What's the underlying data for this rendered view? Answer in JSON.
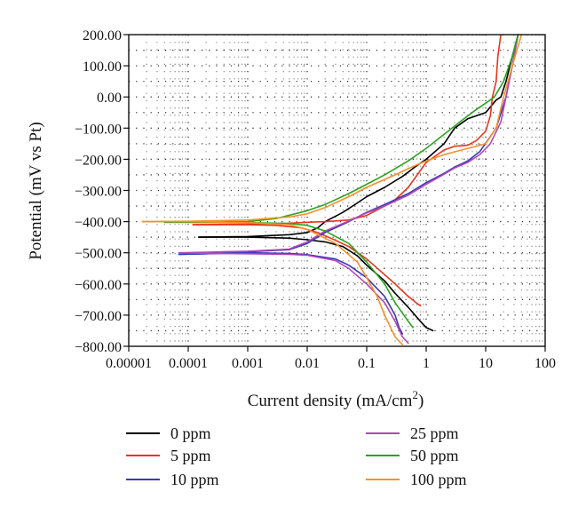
{
  "chart_data": {
    "type": "line",
    "xlabel": "Current density (mA/cm",
    "xlabel_sup": "2",
    "xlabel_close": ")",
    "ylabel": "Potential (mV vs Pt)",
    "x_scale": "log",
    "xlim": [
      1e-05,
      100
    ],
    "ylim": [
      -800,
      200
    ],
    "grid": true,
    "legend_position": "bottom",
    "x_tick_values": [
      1e-05,
      0.0001,
      0.001,
      0.01,
      0.1,
      1,
      10,
      100
    ],
    "x_tick_labels": [
      "0.00001",
      "0.0001",
      "0.001",
      "0.01",
      "0.1",
      "1",
      "10",
      "100"
    ],
    "y_tick_values": [
      200,
      100,
      0,
      -100,
      -200,
      -300,
      -400,
      -500,
      -600,
      -700,
      -800
    ],
    "y_tick_labels": [
      "200.00",
      "100.00",
      "0.00",
      "−100.00",
      "−200.00",
      "−300.00",
      "−400.00",
      "−500.00",
      "−600.00",
      "−700.00",
      "−800.00"
    ],
    "series": [
      {
        "name": "0 ppm",
        "color": "#000000",
        "cathodic": [
          [
            0.00015,
            -450
          ],
          [
            0.001,
            -450
          ],
          [
            0.005,
            -453
          ],
          [
            0.01,
            -458
          ],
          [
            0.02,
            -465
          ],
          [
            0.04,
            -480
          ],
          [
            0.07,
            -510
          ],
          [
            0.1,
            -540
          ],
          [
            0.2,
            -590
          ],
          [
            0.3,
            -630
          ],
          [
            0.5,
            -675
          ],
          [
            0.8,
            -720
          ],
          [
            1.0,
            -740
          ],
          [
            1.3,
            -750
          ]
        ],
        "anodic": [
          [
            0.00015,
            -450
          ],
          [
            0.001,
            -448
          ],
          [
            0.005,
            -442
          ],
          [
            0.01,
            -435
          ],
          [
            0.015,
            -420
          ],
          [
            0.02,
            -400
          ],
          [
            0.04,
            -370
          ],
          [
            0.07,
            -340
          ],
          [
            0.1,
            -320
          ],
          [
            0.2,
            -290
          ],
          [
            0.4,
            -255
          ],
          [
            0.7,
            -220
          ],
          [
            1,
            -200
          ],
          [
            2,
            -150
          ],
          [
            3,
            -100
          ],
          [
            5,
            -70
          ],
          [
            10,
            -50
          ],
          [
            15,
            -10
          ],
          [
            18,
            0
          ],
          [
            22,
            50
          ],
          [
            28,
            130
          ],
          [
            35,
            200
          ]
        ]
      },
      {
        "name": "5 ppm",
        "color": "#e8351e",
        "cathodic": [
          [
            0.00012,
            -410
          ],
          [
            0.001,
            -410
          ],
          [
            0.003,
            -412
          ],
          [
            0.008,
            -420
          ],
          [
            0.015,
            -435
          ],
          [
            0.03,
            -460
          ],
          [
            0.05,
            -480
          ],
          [
            0.1,
            -520
          ],
          [
            0.2,
            -570
          ],
          [
            0.3,
            -600
          ],
          [
            0.5,
            -640
          ],
          [
            0.7,
            -662
          ],
          [
            0.8,
            -670
          ]
        ],
        "anodic": [
          [
            0.00012,
            -410
          ],
          [
            0.001,
            -408
          ],
          [
            0.005,
            -405
          ],
          [
            0.01,
            -402
          ],
          [
            0.02,
            -400
          ],
          [
            0.05,
            -395
          ],
          [
            0.1,
            -380
          ],
          [
            0.2,
            -350
          ],
          [
            0.3,
            -330
          ],
          [
            0.5,
            -290
          ],
          [
            1,
            -210
          ],
          [
            2,
            -170
          ],
          [
            3,
            -158
          ],
          [
            5,
            -155
          ],
          [
            7,
            -140
          ],
          [
            10,
            -110
          ],
          [
            12,
            -60
          ],
          [
            13,
            0
          ],
          [
            15,
            50
          ],
          [
            16,
            130
          ],
          [
            18,
            200
          ]
        ]
      },
      {
        "name": "10 ppm",
        "color": "#3a3ab5",
        "cathodic": [
          [
            7e-05,
            -505
          ],
          [
            0.0002,
            -503
          ],
          [
            0.001,
            -500
          ],
          [
            0.005,
            -502
          ],
          [
            0.01,
            -506
          ],
          [
            0.03,
            -520
          ],
          [
            0.05,
            -540
          ],
          [
            0.1,
            -580
          ],
          [
            0.2,
            -640
          ],
          [
            0.3,
            -700
          ],
          [
            0.35,
            -740
          ],
          [
            0.4,
            -760
          ]
        ],
        "anodic": [
          [
            7e-05,
            -505
          ],
          [
            0.0002,
            -503
          ],
          [
            0.001,
            -497
          ],
          [
            0.005,
            -490
          ],
          [
            0.01,
            -470
          ],
          [
            0.02,
            -435
          ],
          [
            0.05,
            -400
          ],
          [
            0.1,
            -370
          ],
          [
            0.2,
            -345
          ],
          [
            0.5,
            -310
          ],
          [
            1,
            -275
          ],
          [
            2,
            -245
          ],
          [
            3,
            -225
          ],
          [
            5,
            -205
          ],
          [
            8,
            -175
          ],
          [
            15,
            -100
          ],
          [
            22,
            0
          ],
          [
            28,
            100
          ],
          [
            35,
            200
          ]
        ]
      },
      {
        "name": "25 ppm",
        "color": "#b147b8",
        "cathodic": [
          [
            7e-05,
            -500
          ],
          [
            0.0002,
            -502
          ],
          [
            0.001,
            -503
          ],
          [
            0.005,
            -505
          ],
          [
            0.01,
            -508
          ],
          [
            0.03,
            -525
          ],
          [
            0.05,
            -550
          ],
          [
            0.1,
            -600
          ],
          [
            0.2,
            -660
          ],
          [
            0.3,
            -720
          ],
          [
            0.4,
            -770
          ],
          [
            0.5,
            -790
          ]
        ],
        "anodic": [
          [
            7e-05,
            -500
          ],
          [
            0.0002,
            -498
          ],
          [
            0.001,
            -495
          ],
          [
            0.005,
            -488
          ],
          [
            0.01,
            -465
          ],
          [
            0.02,
            -430
          ],
          [
            0.05,
            -398
          ],
          [
            0.1,
            -372
          ],
          [
            0.2,
            -350
          ],
          [
            0.5,
            -315
          ],
          [
            1,
            -280
          ],
          [
            2,
            -248
          ],
          [
            3,
            -228
          ],
          [
            5,
            -210
          ],
          [
            8,
            -185
          ],
          [
            12,
            -150
          ],
          [
            18,
            -80
          ],
          [
            22,
            0
          ],
          [
            28,
            100
          ],
          [
            35,
            200
          ]
        ]
      },
      {
        "name": "50 ppm",
        "color": "#2aa31f",
        "cathodic": [
          [
            4e-05,
            -402
          ],
          [
            0.001,
            -403
          ],
          [
            0.005,
            -406
          ],
          [
            0.01,
            -412
          ],
          [
            0.02,
            -430
          ],
          [
            0.05,
            -470
          ],
          [
            0.1,
            -530
          ],
          [
            0.2,
            -600
          ],
          [
            0.3,
            -660
          ],
          [
            0.5,
            -720
          ],
          [
            0.6,
            -740
          ]
        ],
        "anodic": [
          [
            4e-05,
            -402
          ],
          [
            0.001,
            -400
          ],
          [
            0.003,
            -390
          ],
          [
            0.01,
            -365
          ],
          [
            0.02,
            -345
          ],
          [
            0.05,
            -310
          ],
          [
            0.1,
            -280
          ],
          [
            0.2,
            -250
          ],
          [
            0.5,
            -205
          ],
          [
            1,
            -165
          ],
          [
            2,
            -120
          ],
          [
            4,
            -75
          ],
          [
            7,
            -40
          ],
          [
            10,
            -20
          ],
          [
            14,
            0
          ],
          [
            20,
            50
          ],
          [
            28,
            130
          ],
          [
            35,
            200
          ]
        ]
      },
      {
        "name": "100 ppm",
        "color": "#f5912a",
        "cathodic": [
          [
            1.7e-05,
            -400
          ],
          [
            0.0001,
            -400
          ],
          [
            0.001,
            -403
          ],
          [
            0.005,
            -410
          ],
          [
            0.01,
            -425
          ],
          [
            0.03,
            -470
          ],
          [
            0.07,
            -530
          ],
          [
            0.1,
            -580
          ],
          [
            0.15,
            -640
          ],
          [
            0.2,
            -700
          ],
          [
            0.3,
            -770
          ],
          [
            0.4,
            -795
          ]
        ],
        "anodic": [
          [
            1.7e-05,
            -400
          ],
          [
            0.0001,
            -399
          ],
          [
            0.001,
            -395
          ],
          [
            0.005,
            -385
          ],
          [
            0.01,
            -375
          ],
          [
            0.02,
            -355
          ],
          [
            0.05,
            -320
          ],
          [
            0.1,
            -290
          ],
          [
            0.3,
            -250
          ],
          [
            0.5,
            -230
          ],
          [
            1,
            -205
          ],
          [
            2,
            -185
          ],
          [
            5,
            -165
          ],
          [
            10,
            -150
          ],
          [
            15,
            -100
          ],
          [
            20,
            0
          ],
          [
            28,
            100
          ],
          [
            40,
            200
          ]
        ]
      }
    ]
  }
}
